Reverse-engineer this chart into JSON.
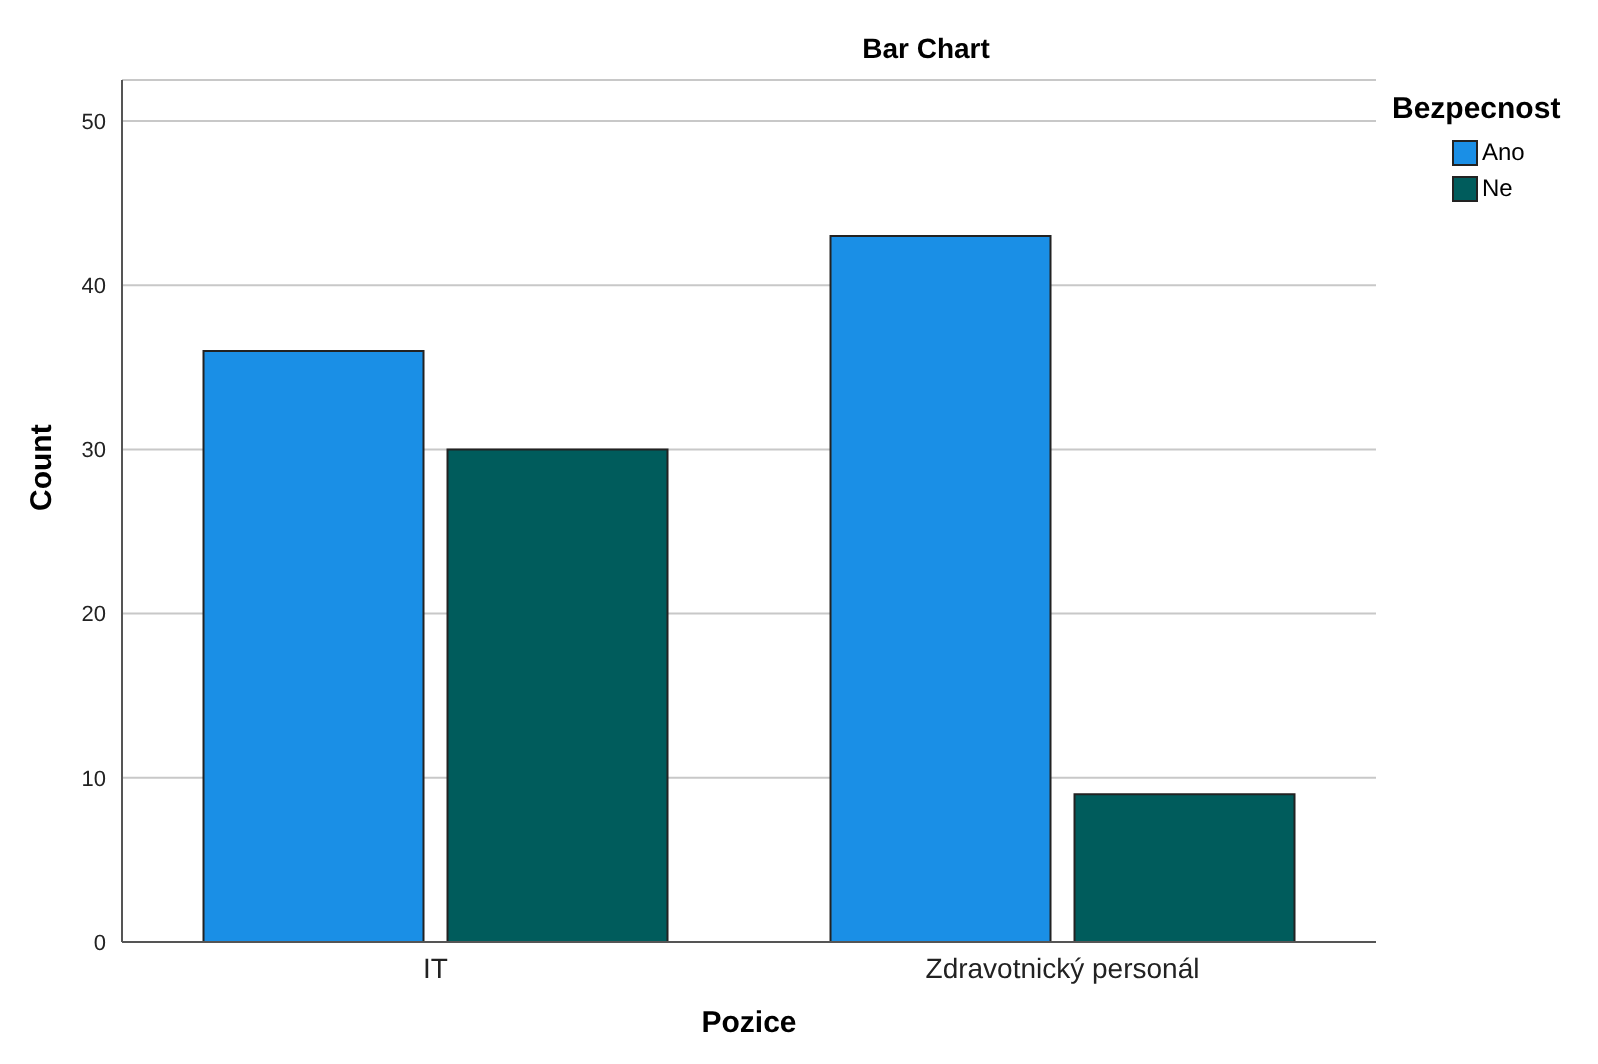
{
  "chart_data": {
    "type": "bar",
    "title": "Bar Chart",
    "xlabel": "Pozice",
    "ylabel": "Count",
    "legend_title": "Bezpecnost",
    "categories": [
      "IT",
      "Zdravotnický personál"
    ],
    "series": [
      {
        "name": "Ano",
        "color": "#1a8fe6",
        "values": [
          36,
          43
        ]
      },
      {
        "name": "Ne",
        "color": "#005c5c",
        "values": [
          30,
          9
        ]
      }
    ],
    "ylim": [
      0,
      52.5
    ],
    "yticks": [
      0,
      10,
      20,
      30,
      40,
      50
    ],
    "grid": "y",
    "legend": "top right"
  }
}
